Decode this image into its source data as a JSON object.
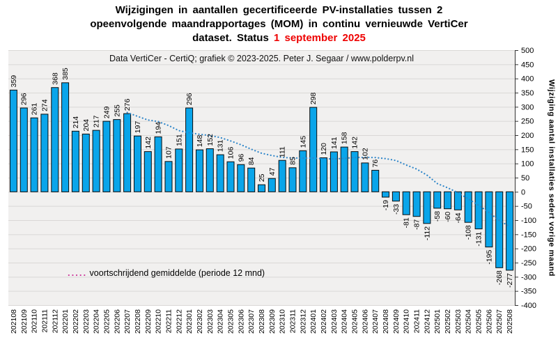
{
  "page": {
    "title_line1": "Wijzigingen in aantallen gecertificeerde PV-installaties tussen 2",
    "title_line2": "opeenvolgende maandrapportages (MOM) in continu vernieuwde VertiCer",
    "title_line3_prefix": "dataset. Status ",
    "title_line3_date": "1 september 2025"
  },
  "chart_data": {
    "type": "bar",
    "title": "Wijzigingen in aantallen gecertificeerde PV-installaties tussen 2 opeenvolgende maandrapportages (MOM) in continu vernieuwde VertiCer dataset. Status 1 september 2025",
    "subtitle": "Data VertiCer - CertiQ; grafiek © 2023-2025.  Peter J. Segaar / www.polderpv.nl",
    "ylabel_right": "Wijziging aantal installaties sedert vorige maand",
    "ylim": [
      -400,
      500
    ],
    "ytick_step": 50,
    "grid": true,
    "legend_position": "bottom-left-inside",
    "categories": [
      "202108",
      "202109",
      "202110",
      "202111",
      "202112",
      "202201",
      "202202",
      "202203",
      "202204",
      "202205",
      "202206",
      "202207",
      "202208",
      "202209",
      "202210",
      "202211",
      "202212",
      "202301",
      "202302",
      "202303",
      "202304",
      "202305",
      "202306",
      "202307",
      "202308",
      "202309",
      "202310",
      "202311",
      "202312",
      "202401",
      "202402",
      "202403",
      "202404",
      "202405",
      "202406",
      "202407",
      "202408",
      "202409",
      "202410",
      "202411",
      "202412",
      "202501",
      "202502",
      "202503",
      "202504",
      "202505",
      "202506",
      "202507",
      "202508"
    ],
    "values": [
      359,
      296,
      261,
      274,
      368,
      385,
      214,
      204,
      217,
      249,
      255,
      276,
      197,
      142,
      194,
      107,
      151,
      296,
      148,
      152,
      131,
      106,
      96,
      84,
      25,
      47,
      111,
      85,
      145,
      298,
      120,
      141,
      158,
      142,
      102,
      76,
      -19,
      -33,
      -81,
      -87,
      -112,
      -58,
      -60,
      -64,
      -108,
      -131,
      -195,
      -268,
      -277
    ],
    "moving_average": {
      "window_months": 12,
      "legend_dots": ".....",
      "legend_label": " voortschrijdend gemiddelde  (periode 12 mnd)",
      "values": [
        null,
        null,
        null,
        null,
        null,
        null,
        null,
        null,
        null,
        null,
        null,
        279.8,
        266.3,
        253.5,
        247.9,
        234,
        215.9,
        208.5,
        203,
        198.7,
        191.5,
        179.6,
        166.3,
        150.3,
        136,
        128.1,
        121.2,
        119.3,
        118.8,
        119,
        116.7,
        115.8,
        118,
        121,
        121.5,
        120.8,
        117.2,
        110.5,
        94.5,
        80.2,
        58.8,
        29.1,
        14.1,
        -3,
        -25.2,
        -47.9,
        -72.7,
        -101.3,
        -122.8
      ]
    },
    "colors": {
      "bar_fill": "#0aa5ea",
      "bar_outline": "#0b0b0b",
      "ma_line": "#2f86c9",
      "legend_dots": "#cc3399",
      "title_date": "#ee0000",
      "plot_bg": "#f1f0ef",
      "gridline": "#dad8d6",
      "axis": "#333333"
    }
  }
}
